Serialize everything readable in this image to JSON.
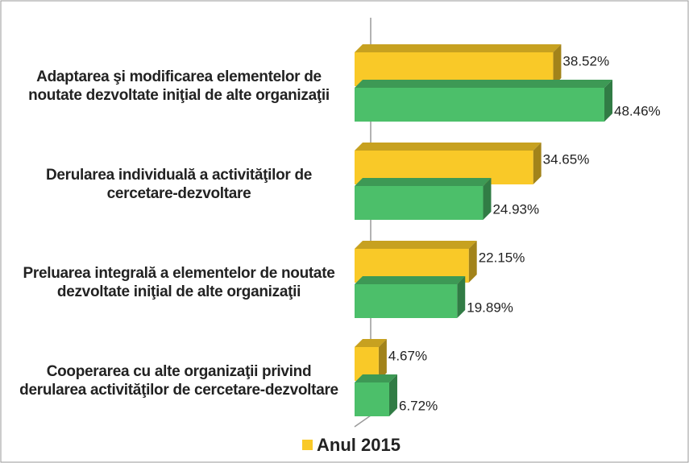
{
  "chart_data": {
    "type": "bar3d_horizontal",
    "categories": [
      "Adaptarea şi modificarea elementelor de noutate dezvoltate iniţial de alte organizaţii",
      "Derularea individuală a activităţilor de cercetare-dezvoltare",
      "Preluarea integrală a elementelor de noutate dezvoltate iniţial de alte organizaţii",
      "Cooperarea cu alte organizaţii privind derularea activităţilor de cercetare-dezvoltare"
    ],
    "series": [
      {
        "name": "Anul 2015",
        "color": "#f9c928",
        "values": [
          38.52,
          34.65,
          22.15,
          4.67
        ],
        "value_labels": [
          "38.52%",
          "34.65%",
          "22.15%",
          "4.67%"
        ]
      },
      {
        "color": "#4cbf6a",
        "values": [
          48.46,
          24.93,
          19.89,
          6.72
        ],
        "value_labels": [
          "48.46%",
          "24.93%",
          "19.89%",
          "6.72%"
        ]
      }
    ]
  }
}
